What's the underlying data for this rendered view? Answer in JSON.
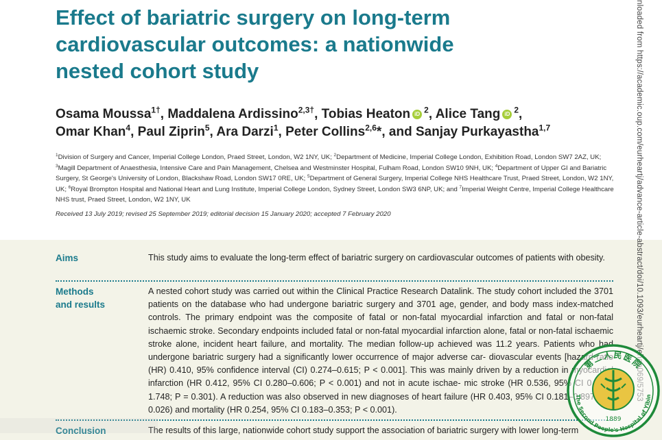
{
  "title_lines": [
    "Effect of bariatric surgery on long-term",
    "cardiovascular outcomes: a nationwide",
    "nested cohort study"
  ],
  "authors": {
    "a1": "Osama Moussa",
    "a1_sup": "1†",
    "a2": "Maddalena Ardissino",
    "a2_sup": "2,3†",
    "a3": "Tobias Heaton",
    "a3_sup": "2",
    "a4": "Alice Tang",
    "a4_sup": "2",
    "a5": "Omar Khan",
    "a5_sup": "4",
    "a6": "Paul Ziprin",
    "a6_sup": "5",
    "a7": "Ara Darzi",
    "a7_sup": "1",
    "a8": "Peter Collins",
    "a8_sup": "2,6",
    "a8_mark": "*",
    "and": "and",
    "a9": "Sanjay Purkayastha",
    "a9_sup": "1,7"
  },
  "affiliations": [
    {
      "sup": "1",
      "text": "Division of Surgery and Cancer, Imperial College London, Praed Street, London, W2 1NY, UK; "
    },
    {
      "sup": "2",
      "text": "Department of Medicine, Imperial College London, Exhibition Road, London SW7 2AZ, UK; "
    },
    {
      "sup": "3",
      "text": "Magill Department of Anaesthesia, Intensive Care and Pain Management, Chelsea and Westminster Hospital, Fulham Road, London SW10 9NH, UK; "
    },
    {
      "sup": "4",
      "text": "Department of Upper GI and Bariatric Surgery, St George's University of London, Blackshaw Road, London SW17 0RE, UK; "
    },
    {
      "sup": "5",
      "text": "Department of General Surgery, Imperial College NHS Healthcare Trust, Praed Street, London, W2 1NY, UK; "
    },
    {
      "sup": "6",
      "text": "Royal Brompton Hospital and National Heart and Lung Institute, Imperial College London, Sydney Street, London SW3 6NP, UK; and "
    },
    {
      "sup": "7",
      "text": "Imperial Weight Centre, Imperial College Healthcare NHS trust, Praed Street, London, W2 1NY, UK"
    }
  ],
  "dates": "Received 13 July 2019; revised 25 September 2019; editorial decision 15 January 2020; accepted 7 February 2020",
  "abstract": {
    "aims_label": "Aims",
    "aims_text": "This study aims to evaluate the long-term effect of bariatric surgery on cardiovascular outcomes of patients with obesity.",
    "methods_label_1": "Methods",
    "methods_label_2": "and results",
    "methods_text": "A nested cohort study was carried out within the Clinical Practice Research Datalink. The study cohort included the 3701 patients on the database who had undergone bariatric surgery and 3701 age, gender, and body mass index-matched controls. The primary endpoint was the composite of fatal or non-fatal myocardial infarction and fatal or non-fatal ischaemic stroke. Secondary endpoints included fatal or non-fatal myocardial infarction alone, fatal or non-fatal ischaemic stroke alone, incident heart failure, and mortality. The median follow-up achieved was 11.2 years. Patients who had undergone bariatric surgery had a significantly lower occurrence of major adverse car- diovascular events [hazard ratio (HR) 0.410, 95% confidence interval (CI) 0.274–0.615; P < 0.001]. This was mainly driven by a reduction in myocardial infarction (HR 0.412, 95% CI 0.280–0.606; P < 0.001) and not in acute ischae- mic stroke (HR 0.536, 95% CI 0.164–1.748; P = 0.301). A reduction was also observed in new diagnoses of heart failure (HR 0.403, 95% CI 0.181–0.897; P = 0.026) and mortality (HR 0.254, 95% CI 0.183–0.353; P < 0.001).",
    "conclusion_label": "Conclusion",
    "conclusion_text": "The results of this large, nationwide cohort study support the association of bariatric surgery with lower long-term"
  },
  "side_text": "nloaded from https://academic.oup.com/eurheartj/advance-article-abstract/doi/10.1093/eurheartj/ehaa069/5753",
  "seal": {
    "text_top": "第二人民医院",
    "text_english": "The Second People's Hospital of Yibin",
    "year": "1889",
    "color": "#1e8a3a"
  },
  "colors": {
    "accent": "#1a7a8c",
    "abstract_bg": "#f3f3e8",
    "orcid": "#a6ce39"
  },
  "icons": {
    "orcid": "orcid-icon"
  }
}
